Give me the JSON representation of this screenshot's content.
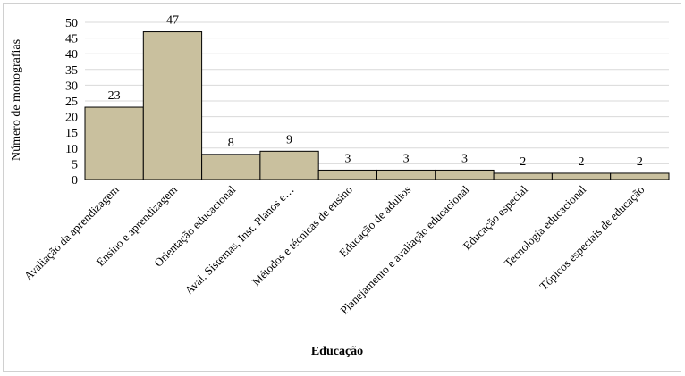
{
  "chart_data": {
    "type": "bar",
    "categories": [
      "Avaliação da aprendizagem",
      "Ensino e aprendizagem",
      "Orientação educacional",
      "Aval. Sistemas, Inst. Planos e…",
      "Métodos e técnicas de ensino",
      "Educação de adultos",
      "Planejamento e avaliação educacional",
      "Educação especial",
      "Tecnologia educacional",
      "Tópicos especiais de educação"
    ],
    "values": [
      23,
      47,
      8,
      9,
      3,
      3,
      3,
      2,
      2,
      2
    ],
    "color": "#c9c09e",
    "ylim": [
      0,
      50
    ],
    "yticks": [
      0,
      5,
      10,
      15,
      20,
      25,
      30,
      35,
      40,
      45,
      50
    ],
    "grid": true,
    "x_label": "Educação",
    "y_label": "Número de monografias"
  }
}
